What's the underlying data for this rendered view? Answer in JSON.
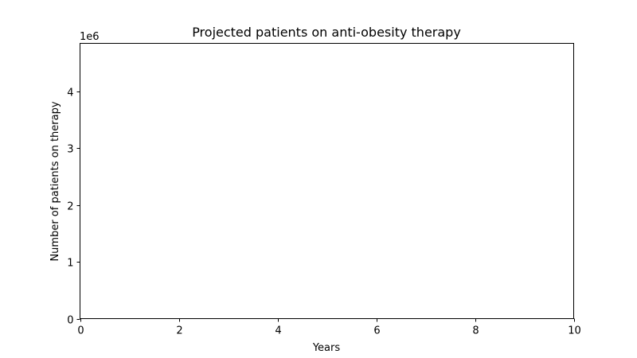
{
  "chart_data": {
    "type": "line",
    "title": "Projected patients on anti-obesity therapy",
    "xlabel": "Years",
    "ylabel": "Number of patients on therapy",
    "xlim": [
      0,
      10
    ],
    "ylim": [
      0,
      4850000
    ],
    "x_ticks": [
      0,
      2,
      4,
      6,
      8,
      10
    ],
    "x_tick_labels": [
      "0",
      "2",
      "4",
      "6",
      "8",
      "10"
    ],
    "y_ticks": [
      0,
      1000000,
      2000000,
      3000000,
      4000000
    ],
    "y_tick_labels": [
      "0",
      "1",
      "2",
      "3",
      "4"
    ],
    "y_offset_label": "1e6",
    "grid": false,
    "series": []
  }
}
